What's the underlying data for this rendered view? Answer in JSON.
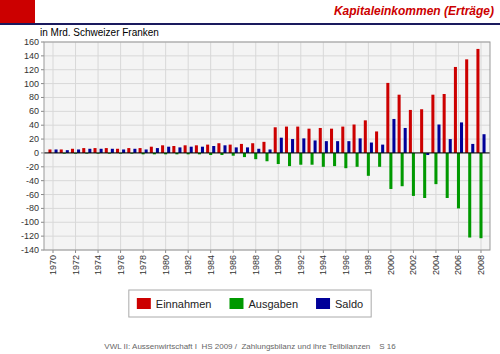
{
  "chart_data": {
    "type": "bar",
    "title": "Kapitaleinkommen (Erträge)",
    "subtitle": "in Mrd. Schweizer Franken",
    "annotations": [
      "VWL II: Aussenwirtschaft I  HS 2009 /  Zahlungsbilanz und ihre Teilbilanzen    S 16"
    ],
    "categories": [
      "1970",
      null,
      "1972",
      null,
      "1974",
      null,
      "1976",
      null,
      "1978",
      null,
      "1980",
      null,
      "1982",
      null,
      "1984",
      null,
      "1986",
      null,
      "1988",
      null,
      "1990",
      null,
      "1992",
      null,
      "1994",
      null,
      "1996",
      null,
      "1998",
      null,
      "2000",
      null,
      "2002",
      null,
      "2004",
      null,
      "2006",
      null,
      "2008"
    ],
    "series": [
      {
        "name": "Einnahmen",
        "color": "#cc0000",
        "values": [
          5,
          5,
          6,
          7,
          7,
          7,
          6,
          7,
          7,
          9,
          11,
          10,
          11,
          11,
          12,
          14,
          12,
          13,
          14,
          16,
          37,
          38,
          38,
          35,
          36,
          35,
          38,
          41,
          47,
          31,
          101,
          84,
          62,
          63,
          84,
          85,
          124,
          135,
          150
        ]
      },
      {
        "name": "Ausgaben",
        "color": "#009900",
        "values": [
          0,
          -1,
          -1,
          -1,
          -1,
          -1,
          -1,
          -1,
          -2,
          -2,
          -2,
          -2,
          -2,
          -2,
          -3,
          -3,
          -4,
          -6,
          -9,
          -12,
          -16,
          -19,
          -17,
          -17,
          -20,
          -19,
          -22,
          -20,
          -33,
          -20,
          -52,
          -48,
          -62,
          -65,
          -45,
          -65,
          -80,
          -122,
          -123
        ]
      },
      {
        "name": "Saldo",
        "color": "#000099",
        "values": [
          5,
          4,
          5,
          6,
          6,
          6,
          5,
          6,
          5,
          7,
          9,
          8,
          9,
          9,
          10,
          11,
          8,
          8,
          6,
          5,
          22,
          20,
          21,
          18,
          17,
          17,
          17,
          21,
          15,
          12,
          49,
          36,
          0,
          -3,
          41,
          20,
          44,
          13,
          27
        ]
      }
    ],
    "ylim": [
      -140,
      160
    ],
    "yticks": [
      -140,
      -120,
      -100,
      -80,
      -60,
      -40,
      -20,
      0,
      20,
      40,
      60,
      80,
      100,
      120,
      140,
      160
    ],
    "grid": true,
    "legend": "bottom"
  }
}
